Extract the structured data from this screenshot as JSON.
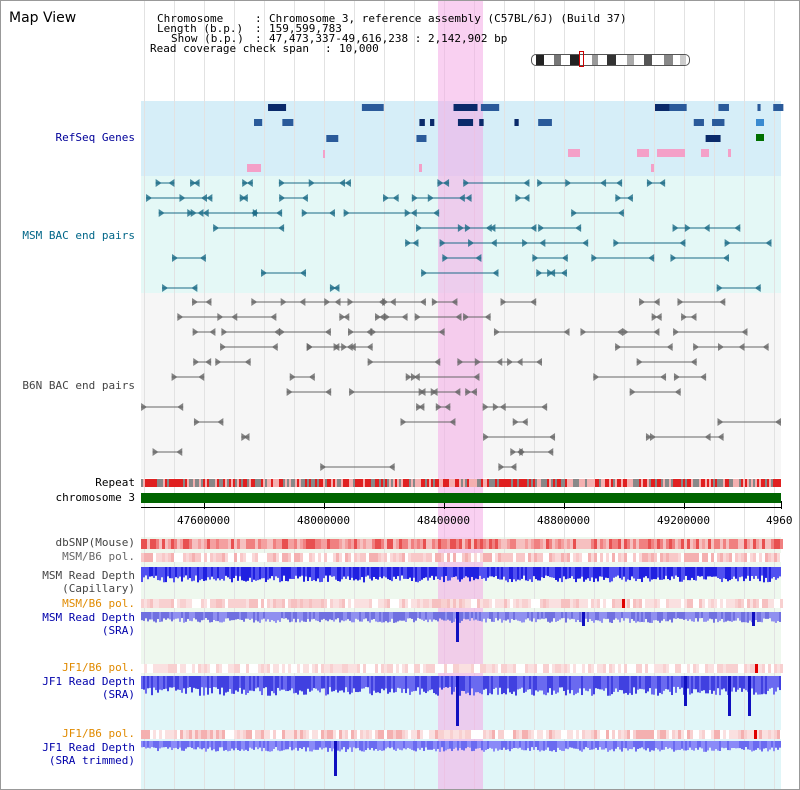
{
  "app": {
    "title": "Map View"
  },
  "info": {
    "chromosome_label": "Chromosome",
    "chromosome_value": "Chromosome 3, reference assembly (C57BL/6J) (Build 37)",
    "length_label": "Length (b.p.)",
    "length_value": "159,599,783",
    "show_label": "Show (b.p.)",
    "show_value": "47,473,337-49,616,238 : 2,142,902 bp",
    "coverage_label": "Read coverage check span",
    "coverage_value": "10,000"
  },
  "tracks": {
    "refseq": "RefSeq Genes",
    "msm_bac": "MSM BAC end pairs",
    "b6n_bac": "B6N BAC end pairs",
    "repeat": "Repeat",
    "chromosome": "chromosome 3",
    "dbsnp": "dbSNP(Mouse)",
    "msm_b6_pol": "MSM/B6 pol.",
    "msm_depth_cap_1": "MSM Read Depth",
    "msm_depth_cap_2": "(Capillary)",
    "msm_b6_pol_2": "MSM/B6 pol.",
    "msm_depth_sra_1": "MSM Read Depth",
    "msm_depth_sra_2": "(SRA)",
    "jf1_b6_pol": "JF1/B6 pol.",
    "jf1_depth_sra_1": "JF1 Read Depth",
    "jf1_depth_sra_2": "(SRA)",
    "jf1_b6_pol_2": "JF1/B6 pol.",
    "jf1_depth_trim_1": "JF1 Read Depth",
    "jf1_depth_trim_2": "(SRA trimmed)"
  },
  "axis": {
    "ticks": [
      "47600000",
      "48000000",
      "48400000",
      "48800000",
      "49200000",
      "4960"
    ]
  },
  "colors": {
    "refseq_label": "#000099",
    "msm_bac_label": "#006688",
    "b6n_bac_label": "#444444",
    "orange_label": "#e08a00",
    "blue_label": "#0000aa",
    "highlight": "#f4aae6",
    "chromosome_bar": "#006400"
  }
}
